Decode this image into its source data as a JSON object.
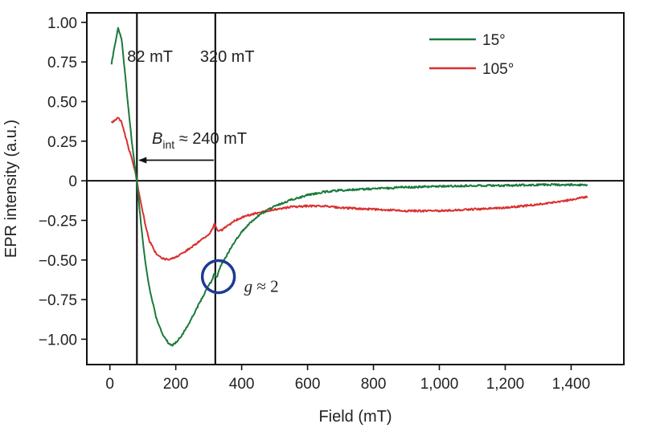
{
  "chart_data": {
    "type": "line",
    "xlabel": "Field (mT)",
    "ylabel": "EPR intensity (a.u.)",
    "xlim": [
      -70,
      1560
    ],
    "ylim": [
      -1.16,
      1.06
    ],
    "x_ticks": [
      0,
      200,
      400,
      600,
      800,
      1000,
      1200,
      1400
    ],
    "x_tick_labels": [
      "0",
      "200",
      "400",
      "600",
      "800",
      "1,000",
      "1,200",
      "1,400"
    ],
    "y_ticks": [
      1.0,
      0.75,
      0.5,
      0.25,
      0,
      -0.25,
      -0.5,
      -0.75,
      -1.0
    ],
    "y_tick_labels": [
      "1.00",
      "0.75",
      "0.50",
      "0.25",
      "0",
      "−0.25",
      "−0.50",
      "−0.75",
      "−1.00"
    ],
    "colors": {
      "series_15": "#1a7a3a",
      "series_105": "#d9302f",
      "circle": "#1f3a93",
      "axis": "#111111"
    },
    "series": [
      {
        "name": "15°",
        "x": [
          5,
          15,
          25,
          35,
          45,
          55,
          65,
          75,
          82,
          90,
          100,
          110,
          120,
          140,
          160,
          180,
          190,
          200,
          220,
          240,
          260,
          280,
          300,
          310,
          318,
          322,
          326,
          330,
          340,
          360,
          380,
          400,
          450,
          500,
          550,
          600,
          650,
          700,
          800,
          900,
          1000,
          1100,
          1200,
          1300,
          1400,
          1450
        ],
        "values": [
          0.74,
          0.86,
          0.96,
          0.9,
          0.7,
          0.48,
          0.28,
          0.1,
          0.0,
          -0.18,
          -0.38,
          -0.55,
          -0.68,
          -0.86,
          -0.97,
          -1.03,
          -1.04,
          -1.02,
          -0.97,
          -0.9,
          -0.82,
          -0.74,
          -0.66,
          -0.63,
          -0.58,
          -0.61,
          -0.6,
          -0.57,
          -0.52,
          -0.45,
          -0.38,
          -0.32,
          -0.22,
          -0.16,
          -0.12,
          -0.09,
          -0.07,
          -0.06,
          -0.05,
          -0.04,
          -0.035,
          -0.03,
          -0.03,
          -0.025,
          -0.025,
          -0.025
        ]
      },
      {
        "name": "105°",
        "x": [
          5,
          15,
          25,
          35,
          45,
          55,
          65,
          75,
          82,
          90,
          100,
          110,
          120,
          140,
          160,
          180,
          190,
          200,
          220,
          240,
          260,
          280,
          300,
          310,
          318,
          322,
          326,
          330,
          340,
          360,
          380,
          400,
          450,
          500,
          550,
          600,
          650,
          700,
          800,
          900,
          1000,
          1100,
          1200,
          1300,
          1400,
          1450
        ],
        "values": [
          0.37,
          0.38,
          0.4,
          0.37,
          0.3,
          0.22,
          0.15,
          0.07,
          0.0,
          -0.1,
          -0.2,
          -0.3,
          -0.38,
          -0.46,
          -0.49,
          -0.5,
          -0.49,
          -0.48,
          -0.46,
          -0.43,
          -0.4,
          -0.37,
          -0.34,
          -0.31,
          -0.27,
          -0.29,
          -0.31,
          -0.32,
          -0.31,
          -0.28,
          -0.25,
          -0.23,
          -0.2,
          -0.18,
          -0.165,
          -0.16,
          -0.16,
          -0.17,
          -0.18,
          -0.19,
          -0.19,
          -0.18,
          -0.17,
          -0.15,
          -0.12,
          -0.1
        ]
      }
    ],
    "annotations": {
      "vline_82": {
        "x": 82,
        "label": "82 mT"
      },
      "vline_320": {
        "x": 320,
        "label": "320 mT"
      },
      "b_int": {
        "symbol": "B",
        "subscript": "int",
        "rest": " ≈ 240 mT",
        "from_x": 320,
        "to_x": 82,
        "y": 0.13
      },
      "g_factor": {
        "symbol": "g",
        "rest": " ≈ 2",
        "x": 322,
        "y": -0.605
      }
    },
    "legend": {
      "position": "top-right",
      "entries": [
        "15°",
        "105°"
      ]
    }
  }
}
